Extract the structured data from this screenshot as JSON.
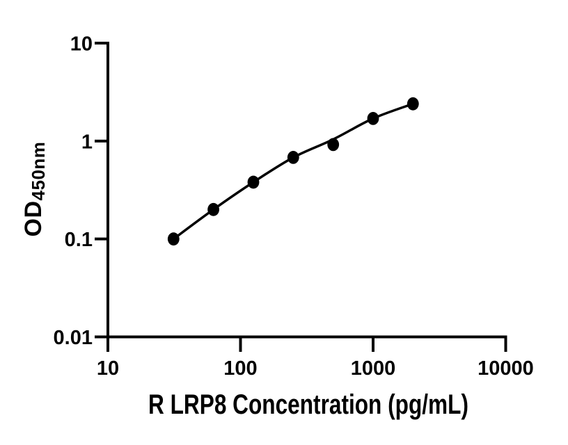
{
  "figure": {
    "background_color": "#ffffff",
    "ink_color": "#000000"
  },
  "chart_data": {
    "type": "scatter",
    "title": "",
    "xlabel": "R LRP8 Concentration (pg/mL)",
    "ylabel_main": "OD",
    "ylabel_sub": "450nm",
    "x_scale": "log10",
    "y_scale": "log10",
    "xlim": [
      10,
      10000
    ],
    "ylim": [
      0.01,
      10
    ],
    "x_ticks": [
      10,
      100,
      1000,
      10000
    ],
    "x_tick_labels": [
      "10",
      "100",
      "1000",
      "10000"
    ],
    "y_ticks": [
      10,
      1,
      0.1,
      0.01
    ],
    "y_tick_labels": [
      "10",
      "1",
      "0.1",
      "0.01"
    ],
    "grid": false,
    "legend": null,
    "marker": "filled-circle",
    "marker_color": "#000000",
    "line_color": "#000000",
    "points": {
      "x": [
        31.25,
        62.5,
        125,
        250,
        500,
        1000,
        2000
      ],
      "y": [
        0.1,
        0.2,
        0.38,
        0.68,
        0.92,
        1.7,
        2.4
      ]
    },
    "fit_curve": {
      "x": [
        31.25,
        62.5,
        125,
        250,
        500,
        1000,
        2000
      ],
      "y": [
        0.1,
        0.2,
        0.38,
        0.68,
        1.04,
        1.7,
        2.4
      ]
    }
  }
}
